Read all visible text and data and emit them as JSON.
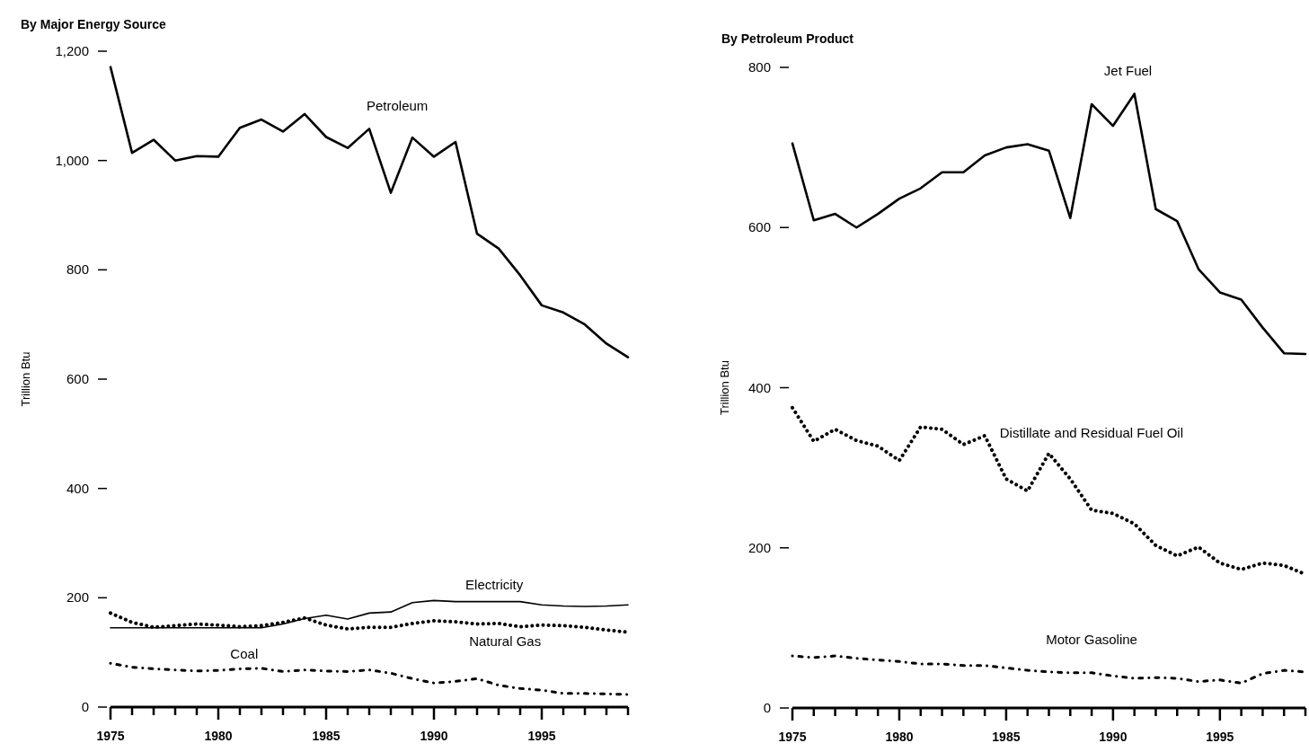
{
  "chart_data": [
    {
      "type": "line",
      "title": "By Major Energy Source",
      "ylabel": "Trillion Btu",
      "x": [
        1975,
        1976,
        1977,
        1978,
        1979,
        1980,
        1981,
        1982,
        1983,
        1984,
        1985,
        1986,
        1987,
        1988,
        1989,
        1990,
        1991,
        1992,
        1993,
        1994,
        1995,
        1996,
        1997,
        1998,
        1999
      ],
      "series": [
        {
          "name": "Petroleum",
          "color": "#000000",
          "line_style": "solid",
          "values": [
            1171,
            1014,
            1038,
            1000,
            1008,
            1007,
            1060,
            1075,
            1053,
            1085,
            1043,
            1023,
            1058,
            941,
            1042,
            1007,
            1034,
            866,
            839,
            790,
            735,
            722,
            700,
            665,
            640
          ]
        },
        {
          "name": "Electricity",
          "color": "#000000",
          "line_style": "solid",
          "values": [
            145,
            145,
            145,
            145,
            145,
            145,
            145,
            145,
            152,
            162,
            168,
            161,
            172,
            174,
            191,
            195,
            193,
            193,
            193,
            193,
            187,
            185,
            184,
            185,
            187
          ]
        },
        {
          "name": "Natural Gas",
          "color": "#000000",
          "line_style": "dotted",
          "values": [
            172,
            155,
            146,
            149,
            152,
            150,
            147,
            149,
            155,
            163,
            150,
            143,
            146,
            146,
            153,
            158,
            156,
            152,
            153,
            147,
            150,
            149,
            146,
            141,
            137
          ]
        },
        {
          "name": "Coal",
          "color": "#000000",
          "line_style": "dashed",
          "values": [
            80,
            73,
            70,
            68,
            66,
            67,
            70,
            71,
            65,
            68,
            66,
            65,
            68,
            62,
            52,
            44,
            47,
            52,
            40,
            34,
            31,
            25,
            25,
            24,
            23
          ]
        }
      ],
      "xlim": [
        1975,
        1999
      ],
      "xticks": [
        1975,
        {
          "value": 1976,
          "label": null
        },
        {
          "value": 1977,
          "label": null
        },
        {
          "value": 1978,
          "label": null
        },
        {
          "value": 1979,
          "label": null
        },
        1980,
        {
          "value": 1981,
          "label": null
        },
        {
          "value": 1982,
          "label": null
        },
        {
          "value": 1983,
          "label": null
        },
        {
          "value": 1984,
          "label": null
        },
        1985,
        {
          "value": 1986,
          "label": null
        },
        {
          "value": 1987,
          "label": null
        },
        {
          "value": 1988,
          "label": null
        },
        {
          "value": 1989,
          "label": null
        },
        1990,
        {
          "value": 1991,
          "label": null
        },
        {
          "value": 1992,
          "label": null
        },
        {
          "value": 1993,
          "label": null
        },
        {
          "value": 1994,
          "label": null
        },
        1995,
        {
          "value": 1996,
          "label": null
        },
        {
          "value": 1997,
          "label": null
        },
        {
          "value": 1998,
          "label": null
        },
        {
          "value": 1999,
          "label": null
        }
      ],
      "ylim": [
        0,
        1200
      ],
      "yticks": [
        0,
        200,
        400,
        600,
        800,
        {
          "value": 1000,
          "label": "1,000"
        },
        {
          "value": 1200,
          "label": "1,200"
        }
      ],
      "grid": false
    },
    {
      "type": "line",
      "title": "By Petroleum Product",
      "ylabel": "Trillion Btu",
      "x": [
        1975,
        1976,
        1977,
        1978,
        1979,
        1980,
        1981,
        1982,
        1983,
        1984,
        1985,
        1986,
        1987,
        1988,
        1989,
        1990,
        1991,
        1992,
        1993,
        1994,
        1995,
        1996,
        1997,
        1998,
        1999
      ],
      "series": [
        {
          "name": "Jet Fuel",
          "color": "#000000",
          "line_style": "solid",
          "values": [
            705,
            609,
            617,
            600,
            617,
            636,
            649,
            669,
            669,
            690,
            700,
            704,
            696,
            612,
            754,
            727,
            767,
            623,
            608,
            548,
            519,
            510,
            475,
            443,
            442
          ]
        },
        {
          "name": "Distillate and Residual Fuel Oil",
          "color": "#000000",
          "line_style": "dotted",
          "values": [
            375,
            333,
            348,
            334,
            327,
            309,
            351,
            348,
            329,
            340,
            286,
            271,
            318,
            286,
            247,
            243,
            230,
            203,
            190,
            201,
            181,
            173,
            181,
            178,
            167
          ]
        },
        {
          "name": "Motor Gasoline",
          "color": "#000000",
          "line_style": "dashed",
          "values": [
            65,
            63,
            65,
            62,
            60,
            58,
            55,
            55,
            53,
            53,
            50,
            47,
            45,
            44,
            44,
            40,
            37,
            38,
            37,
            33,
            35,
            31,
            43,
            47,
            45
          ]
        }
      ],
      "xlim": [
        1975,
        1999
      ],
      "xticks": [
        1975,
        {
          "value": 1976,
          "label": null
        },
        {
          "value": 1977,
          "label": null
        },
        {
          "value": 1978,
          "label": null
        },
        {
          "value": 1979,
          "label": null
        },
        1980,
        {
          "value": 1981,
          "label": null
        },
        {
          "value": 1982,
          "label": null
        },
        {
          "value": 1983,
          "label": null
        },
        {
          "value": 1984,
          "label": null
        },
        1985,
        {
          "value": 1986,
          "label": null
        },
        {
          "value": 1987,
          "label": null
        },
        {
          "value": 1988,
          "label": null
        },
        {
          "value": 1989,
          "label": null
        },
        1990,
        {
          "value": 1991,
          "label": null
        },
        {
          "value": 1992,
          "label": null
        },
        {
          "value": 1993,
          "label": null
        },
        {
          "value": 1994,
          "label": null
        },
        1995,
        {
          "value": 1996,
          "label": null
        },
        {
          "value": 1997,
          "label": null
        },
        {
          "value": 1998,
          "label": null
        },
        {
          "value": 1999,
          "label": null
        }
      ],
      "ylim": [
        0,
        800
      ],
      "yticks": [
        0,
        200,
        400,
        600,
        800
      ],
      "grid": false
    }
  ]
}
